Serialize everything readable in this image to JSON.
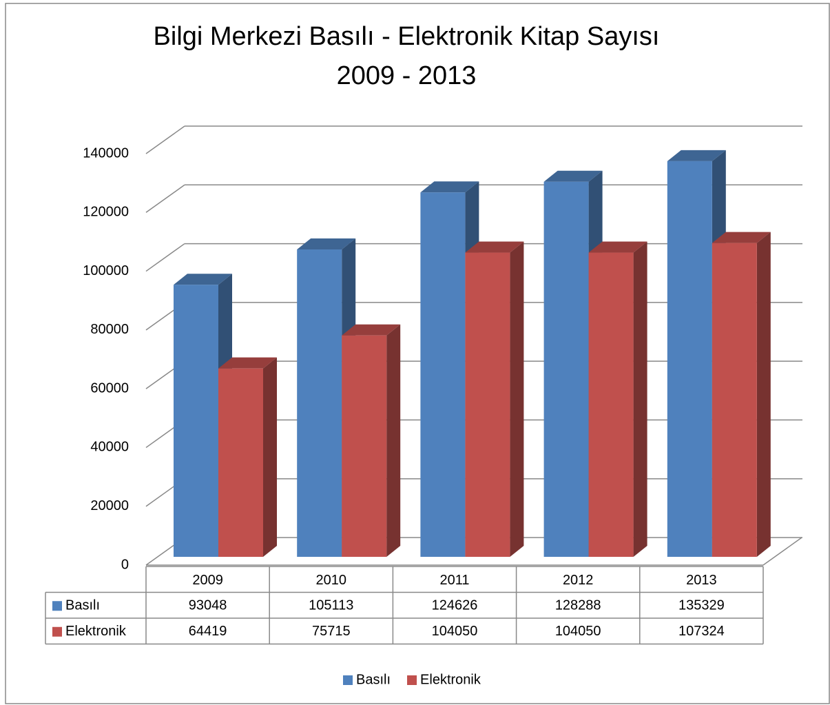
{
  "chart_data": {
    "type": "bar3d",
    "title": "Bilgi Merkezi Basılı - Elektronik Kitap Sayısı",
    "subtitle": "2009 - 2013",
    "categories": [
      "2009",
      "2010",
      "2011",
      "2012",
      "2013"
    ],
    "series": [
      {
        "name": "Basılı",
        "color": "#4f81bd",
        "values": [
          93048,
          105113,
          124626,
          128288,
          135329
        ]
      },
      {
        "name": "Elektronik",
        "color": "#c0504d",
        "values": [
          64419,
          75715,
          104050,
          104050,
          107324
        ]
      }
    ],
    "ylim": [
      0,
      140000
    ],
    "yticks": [
      0,
      20000,
      40000,
      60000,
      80000,
      100000,
      120000,
      140000
    ],
    "grid": true,
    "legend": "bottom",
    "data_table": true
  }
}
